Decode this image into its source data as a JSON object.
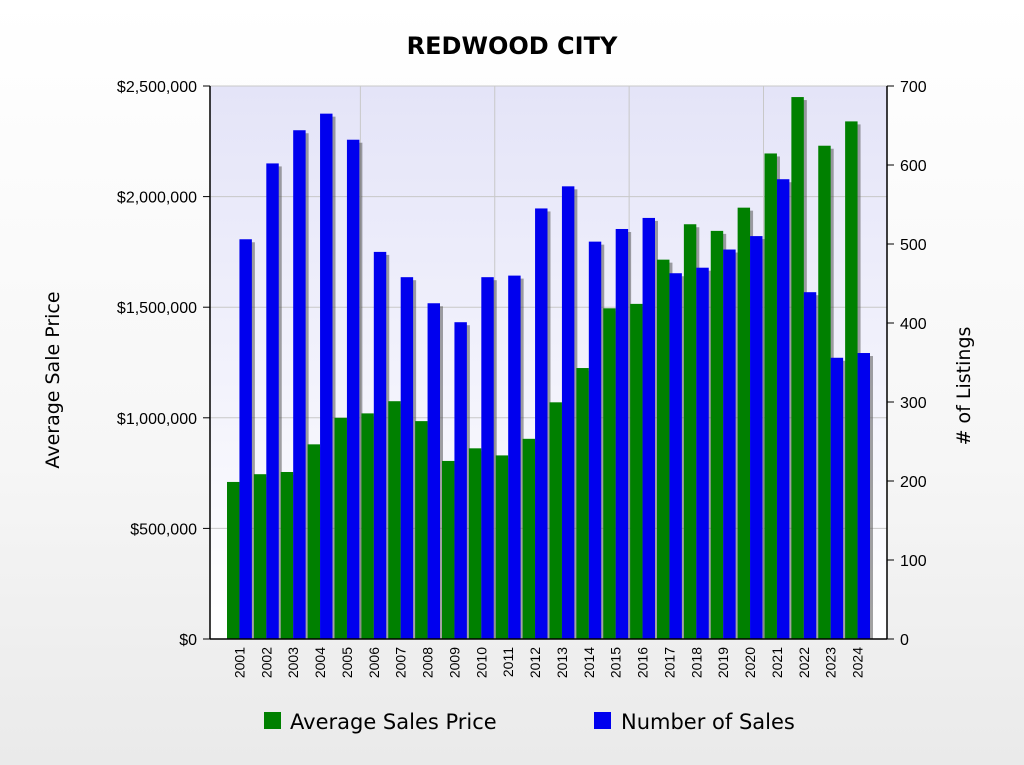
{
  "chart_data": {
    "type": "bar",
    "title": "REDWOOD CITY",
    "ylabel": "Average Sale Price",
    "y2label": "# of Listings",
    "ylim": [
      0,
      2500000
    ],
    "y2lim": [
      0,
      700
    ],
    "yticks": [
      "$0",
      "$500,000",
      "$1,000,000",
      "$1,500,000",
      "$2,000,000",
      "$2,500,000"
    ],
    "y2ticks": [
      "0",
      "100",
      "200",
      "300",
      "400",
      "500",
      "600",
      "700"
    ],
    "grid": true,
    "legend_position": "bottom",
    "categories": [
      "2001",
      "2002",
      "2003",
      "2004",
      "2005",
      "2006",
      "2007",
      "2008",
      "2009",
      "2010",
      "2011",
      "2012",
      "2013",
      "2014",
      "2015",
      "2016",
      "2017",
      "2018",
      "2019",
      "2020",
      "2021",
      "2022",
      "2023",
      "2024"
    ],
    "series": [
      {
        "name": "Average Sales Price",
        "axis": "left",
        "color": "#008000",
        "values": [
          710000,
          745000,
          755000,
          880000,
          1000000,
          1020000,
          1075000,
          985000,
          805000,
          862000,
          830000,
          905000,
          1070000,
          1225000,
          1495000,
          1515000,
          1715000,
          1875000,
          1845000,
          1950000,
          2195000,
          2450000,
          2230000,
          2340000
        ]
      },
      {
        "name": "Number of Sales",
        "axis": "right",
        "color": "#0000ee",
        "values": [
          506,
          602,
          644,
          665,
          632,
          490,
          458,
          425,
          401,
          458,
          460,
          545,
          573,
          503,
          519,
          533,
          463,
          470,
          493,
          510,
          582,
          439,
          356,
          362
        ]
      }
    ]
  }
}
